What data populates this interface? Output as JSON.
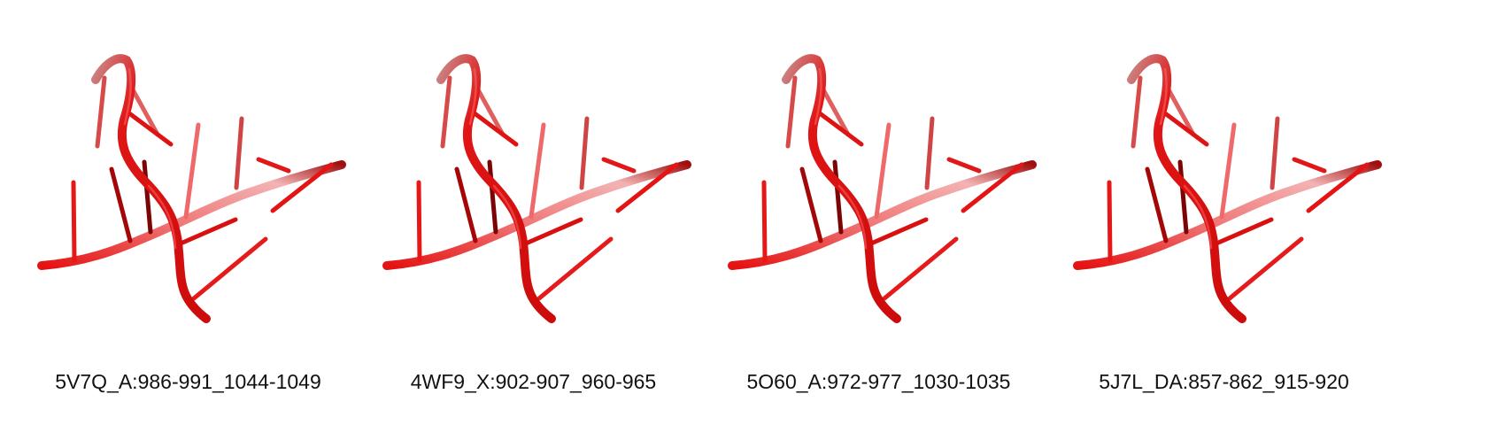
{
  "panels": [
    {
      "label": "5V7Q_A:986-991_1044-1049"
    },
    {
      "label": "4WF9_X:902-907_960-965"
    },
    {
      "label": "5O60_A:972-977_1030-1035"
    },
    {
      "label": "5J7L_DA:857-862_915-920"
    }
  ],
  "colors": {
    "backbone": "#e81010",
    "backbone_light": "#f27a7a",
    "base": "#e41414",
    "base_dark": "#9a0606"
  }
}
